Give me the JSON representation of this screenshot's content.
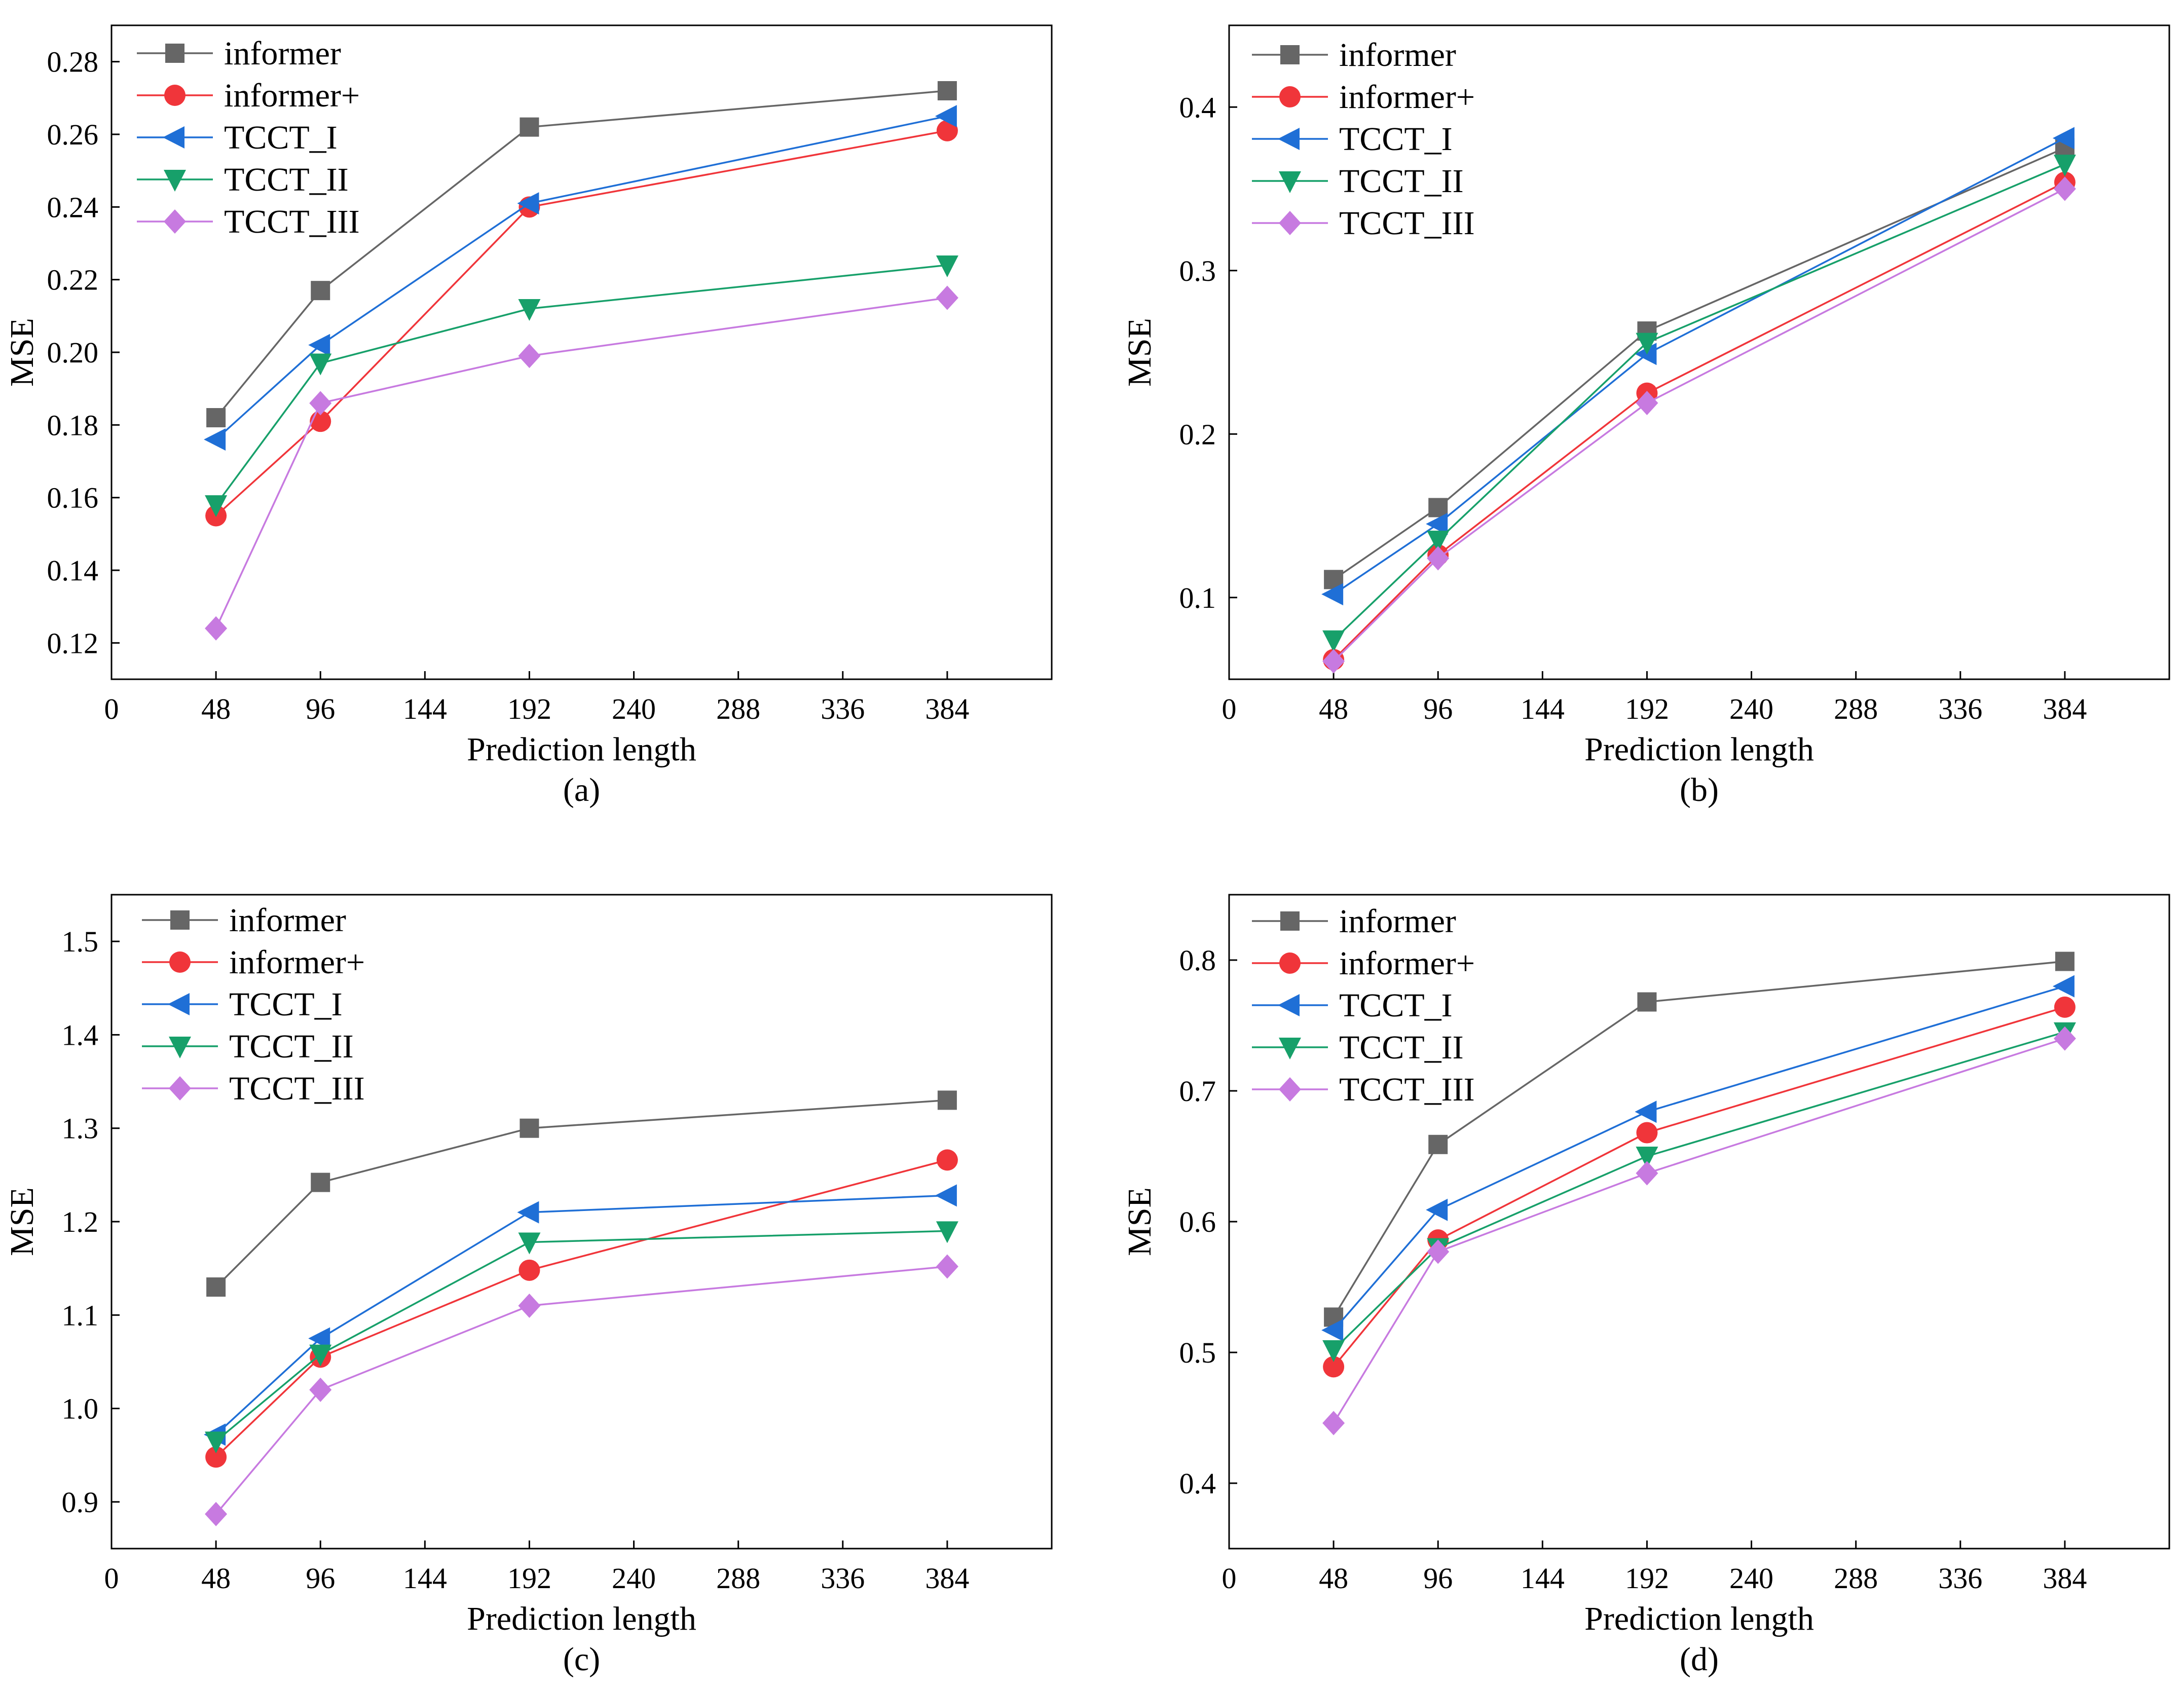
{
  "series_styles": [
    {
      "key": "informer",
      "color": "#666666",
      "marker": "square"
    },
    {
      "key": "informer+",
      "color": "#f0353a",
      "marker": "circle"
    },
    {
      "key": "TCCT_I",
      "color": "#1f6fd6",
      "marker": "triangle-left"
    },
    {
      "key": "TCCT_II",
      "color": "#17a06a",
      "marker": "triangle-down"
    },
    {
      "key": "TCCT_III",
      "color": "#c77ae0",
      "marker": "diamond"
    }
  ],
  "chart_data": [
    {
      "type": "line",
      "caption": "(a)",
      "xlabel": "Prediction length",
      "ylabel": "MSE",
      "xlim": [
        0,
        432
      ],
      "xticks": [
        0,
        48,
        96,
        144,
        192,
        240,
        288,
        336,
        384
      ],
      "ylim": [
        0.11,
        0.29
      ],
      "yticks": [
        0.12,
        0.14,
        0.16,
        0.18,
        0.2,
        0.22,
        0.24,
        0.26,
        0.28
      ],
      "ytick_labels": [
        "0.12",
        "0.14",
        "0.16",
        "0.18",
        "0.20",
        "0.22",
        "0.24",
        "0.26",
        "0.28"
      ],
      "x": [
        48,
        96,
        192,
        384
      ],
      "series": [
        {
          "name": "informer",
          "values": [
            0.182,
            0.217,
            0.262,
            0.272
          ]
        },
        {
          "name": "informer+",
          "values": [
            0.155,
            0.181,
            0.24,
            0.261
          ]
        },
        {
          "name": "TCCT_I",
          "values": [
            0.176,
            0.202,
            0.241,
            0.265
          ]
        },
        {
          "name": "TCCT_II",
          "values": [
            0.158,
            0.197,
            0.212,
            0.224
          ]
        },
        {
          "name": "TCCT_III",
          "values": [
            0.124,
            0.186,
            0.199,
            0.215
          ]
        }
      ]
    },
    {
      "type": "line",
      "caption": "(b)",
      "xlabel": "Prediction length",
      "ylabel": "MSE",
      "xlim": [
        0,
        432
      ],
      "xticks": [
        0,
        48,
        96,
        144,
        192,
        240,
        288,
        336,
        384
      ],
      "ylim": [
        0.05,
        0.45
      ],
      "yticks": [
        0.1,
        0.2,
        0.3,
        0.4
      ],
      "ytick_labels": [
        "0.1",
        "0.2",
        "0.3",
        "0.4"
      ],
      "x": [
        48,
        96,
        192,
        384
      ],
      "series": [
        {
          "name": "informer",
          "values": [
            0.111,
            0.155,
            0.263,
            0.375
          ]
        },
        {
          "name": "informer+",
          "values": [
            0.062,
            0.126,
            0.225,
            0.354
          ]
        },
        {
          "name": "TCCT_I",
          "values": [
            0.102,
            0.145,
            0.249,
            0.381
          ]
        },
        {
          "name": "TCCT_II",
          "values": [
            0.074,
            0.135,
            0.256,
            0.365
          ]
        },
        {
          "name": "TCCT_III",
          "values": [
            0.061,
            0.124,
            0.219,
            0.35
          ]
        }
      ]
    },
    {
      "type": "line",
      "caption": "(c)",
      "xlabel": "Prediction length",
      "ylabel": "MSE",
      "xlim": [
        0,
        432
      ],
      "xticks": [
        0,
        48,
        96,
        144,
        192,
        240,
        288,
        336,
        384
      ],
      "ylim": [
        0.85,
        1.55
      ],
      "yticks": [
        0.9,
        1.0,
        1.1,
        1.2,
        1.3,
        1.4,
        1.5
      ],
      "ytick_labels": [
        "0.9",
        "1.0",
        "1.1",
        "1.2",
        "1.3",
        "1.4",
        "1.5"
      ],
      "x": [
        48,
        96,
        192,
        384
      ],
      "series": [
        {
          "name": "informer",
          "values": [
            1.13,
            1.242,
            1.3,
            1.33
          ]
        },
        {
          "name": "informer+",
          "values": [
            0.948,
            1.055,
            1.148,
            1.266
          ]
        },
        {
          "name": "TCCT_I",
          "values": [
            0.972,
            1.075,
            1.21,
            1.228
          ]
        },
        {
          "name": "TCCT_II",
          "values": [
            0.965,
            1.058,
            1.178,
            1.19
          ]
        },
        {
          "name": "TCCT_III",
          "values": [
            0.887,
            1.02,
            1.11,
            1.152
          ]
        }
      ]
    },
    {
      "type": "line",
      "caption": "(d)",
      "xlabel": "Prediction length",
      "ylabel": "MSE",
      "xlim": [
        0,
        432
      ],
      "xticks": [
        0,
        48,
        96,
        144,
        192,
        240,
        288,
        336,
        384
      ],
      "ylim": [
        0.35,
        0.85
      ],
      "yticks": [
        0.4,
        0.5,
        0.6,
        0.7,
        0.8
      ],
      "ytick_labels": [
        "0.4",
        "0.5",
        "0.6",
        "0.7",
        "0.8"
      ],
      "x": [
        48,
        96,
        192,
        384
      ],
      "series": [
        {
          "name": "informer",
          "values": [
            0.527,
            0.659,
            0.768,
            0.799
          ]
        },
        {
          "name": "informer+",
          "values": [
            0.489,
            0.586,
            0.668,
            0.764
          ]
        },
        {
          "name": "TCCT_I",
          "values": [
            0.517,
            0.609,
            0.684,
            0.78
          ]
        },
        {
          "name": "TCCT_II",
          "values": [
            0.502,
            0.58,
            0.65,
            0.745
          ]
        },
        {
          "name": "TCCT_III",
          "values": [
            0.446,
            0.577,
            0.637,
            0.74
          ]
        }
      ]
    }
  ]
}
